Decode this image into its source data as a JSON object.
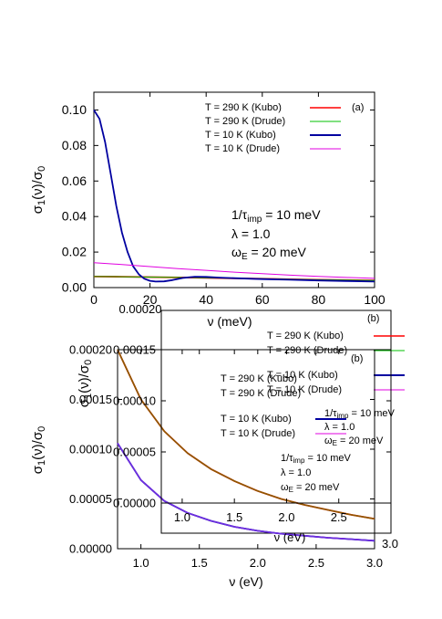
{
  "chart_data": [
    {
      "panel": "(a)",
      "type": "line",
      "ylabel": "σ1(ν)/σ0",
      "xlabel": "ν (meV)",
      "xlim": [
        0,
        100
      ],
      "ylim": [
        0,
        0.11
      ],
      "xticks": [
        0,
        20,
        40,
        60,
        80,
        100
      ],
      "yticks": [
        0.0,
        0.02,
        0.04,
        0.06,
        0.08,
        0.1
      ],
      "ytick_labels": [
        "0.00",
        "0.02",
        "0.04",
        "0.06",
        "0.08",
        "0.10"
      ],
      "legend": "top-right",
      "params": [
        "1/τimp = 10 meV",
        "λ = 1.0",
        "ωE = 20 meV"
      ],
      "series": [
        {
          "name": "T = 290 K (Kubo)",
          "color": "#ff0000",
          "x": [
            0,
            10,
            20,
            30,
            40,
            50,
            60,
            70,
            80,
            90,
            100
          ],
          "y": [
            0.0062,
            0.0061,
            0.0059,
            0.0057,
            0.0055,
            0.0052,
            0.005,
            0.0047,
            0.0044,
            0.0042,
            0.004
          ]
        },
        {
          "name": "T = 290 K (Drude)",
          "color": "#00c000",
          "x": [
            0,
            10,
            20,
            30,
            40,
            50,
            60,
            70,
            80,
            90,
            100
          ],
          "y": [
            0.0062,
            0.0061,
            0.0059,
            0.0057,
            0.0055,
            0.0052,
            0.005,
            0.0047,
            0.0044,
            0.0042,
            0.004
          ]
        },
        {
          "name": "T = 10 K  (Kubo)",
          "color": "#0000a0",
          "x": [
            0,
            2,
            4,
            6,
            8,
            10,
            12,
            14,
            16,
            18,
            20,
            22,
            25,
            28,
            32,
            36,
            40,
            45,
            50,
            60,
            70,
            80,
            90,
            100
          ],
          "y": [
            0.1,
            0.095,
            0.082,
            0.064,
            0.046,
            0.031,
            0.02,
            0.012,
            0.0075,
            0.005,
            0.0038,
            0.0034,
            0.0035,
            0.0042,
            0.0055,
            0.0061,
            0.006,
            0.0056,
            0.0053,
            0.0048,
            0.0044,
            0.004,
            0.0037,
            0.0034
          ]
        },
        {
          "name": "T = 10 K  (Drude)",
          "color": "#e000e0",
          "x": [
            0,
            10,
            20,
            30,
            40,
            50,
            60,
            70,
            80,
            90,
            100
          ],
          "y": [
            0.014,
            0.013,
            0.0118,
            0.0107,
            0.0097,
            0.0087,
            0.0078,
            0.007,
            0.0063,
            0.0057,
            0.0052
          ]
        }
      ]
    },
    {
      "panel": "(b) outer",
      "type": "line",
      "ylabel": "σ1(ν)/σ0",
      "xlabel": "ν (eV)",
      "xlim": [
        0.8,
        3.0
      ],
      "ylim": [
        0,
        0.0002
      ],
      "xticks": [
        1.0,
        1.5,
        2.0,
        2.5,
        3.0
      ],
      "xtick_labels": [
        "1.0",
        "1.5",
        "2.0",
        "2.5",
        "3.0"
      ],
      "yticks": [
        0,
        5e-05,
        0.0001,
        0.00015,
        0.0002
      ],
      "ytick_labels": [
        "0.00000",
        "0.00005",
        "0.00010",
        "0.00015",
        "0.00020"
      ],
      "params": [
        "1/τimp = 10 meV",
        "λ = 1.0",
        "ωE = 20 meV"
      ],
      "series": [
        {
          "name": "T = 290 K (Kubo)",
          "color": "#ff0000",
          "x": [
            0.8,
            1.0,
            1.2,
            1.4,
            1.6,
            1.8,
            2.0,
            2.2,
            2.4,
            2.6,
            2.8,
            3.0
          ],
          "y": [
            0.0002,
            0.00015,
            0.000118,
            9.6e-05,
            8e-05,
            6.8e-05,
            5.8e-05,
            5e-05,
            4.4e-05,
            3.9e-05,
            3.4e-05,
            3e-05
          ]
        },
        {
          "name": "T = 290 K (Drude)",
          "color": "#00c000",
          "x": [
            0.8,
            1.0,
            1.2,
            1.4,
            1.6,
            1.8,
            2.0,
            2.2,
            2.4,
            2.6,
            2.8,
            3.0
          ],
          "y": [
            0.0002,
            0.00015,
            0.000118,
            9.6e-05,
            8e-05,
            6.8e-05,
            5.8e-05,
            5e-05,
            4.4e-05,
            3.9e-05,
            3.4e-05,
            3e-05
          ]
        },
        {
          "name": "T = 10 K  (Kubo)",
          "color": "#0000a0",
          "x": [
            0.8,
            1.0,
            1.2,
            1.4,
            1.6,
            1.8,
            2.0,
            2.2,
            2.4,
            2.6,
            2.8,
            3.0
          ],
          "y": [
            0.000106,
            6.9e-05,
            4.8e-05,
            3.6e-05,
            2.8e-05,
            2.2e-05,
            1.8e-05,
            1.5e-05,
            1.3e-05,
            1.1e-05,
            9.5e-06,
            8e-06
          ]
        },
        {
          "name": "T = 10 K  (Drude)",
          "color": "#e000e0",
          "x": [
            0.8,
            1.0,
            1.2,
            1.4,
            1.6,
            1.8,
            2.0,
            2.2,
            2.4,
            2.6,
            2.8,
            3.0
          ],
          "y": [
            0.000106,
            6.9e-05,
            4.8e-05,
            3.6e-05,
            2.8e-05,
            2.2e-05,
            1.8e-05,
            1.5e-05,
            1.3e-05,
            1.1e-05,
            9.5e-06,
            8e-06
          ]
        }
      ]
    },
    {
      "panel": "(b) inner",
      "type": "line",
      "ylabel": "σ1(ν)/σ0",
      "xlabel": "ν (eV)",
      "xlim": [
        0.8,
        3.0
      ],
      "ylim": [
        0,
        0.00015
      ],
      "xticks": [
        1.0,
        1.5,
        2.0,
        2.5
      ],
      "xtick_labels": [
        "1.0",
        "1.5",
        "2.0",
        "2.5"
      ],
      "yticks": [
        0,
        5e-05,
        0.0001,
        0.00015
      ],
      "ytick_labels": [
        "0.00000",
        "0.00005",
        "0.00010",
        "0.00015"
      ],
      "params": [
        "1/τimp = 10 meV",
        "λ = 1.0",
        "ωE = 20 meV"
      ],
      "series": []
    },
    {
      "panel": "(b) back",
      "type": "line",
      "ytick_labels": [
        "0.00020"
      ],
      "xtick_labels": [
        "3.0"
      ]
    }
  ]
}
